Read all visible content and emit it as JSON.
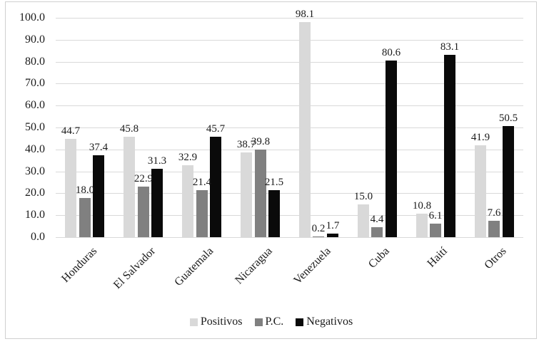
{
  "chart_data": {
    "type": "bar",
    "title": "",
    "xlabel": "",
    "ylabel": "",
    "categories": [
      "Honduras",
      "El Salvador",
      "Guatemala",
      "Nicaragua",
      "Venezuela",
      "Cuba",
      "Haití",
      "Otros"
    ],
    "series": [
      {
        "name": "Positivos",
        "color": "#d9d9d9",
        "values": [
          44.7,
          45.8,
          32.9,
          38.7,
          98.1,
          15.0,
          10.8,
          41.9
        ]
      },
      {
        "name": "P.C.",
        "color": "#808080",
        "values": [
          18.0,
          22.9,
          21.4,
          39.8,
          0.2,
          4.4,
          6.1,
          7.6
        ]
      },
      {
        "name": "Negativos",
        "color": "#0a0a0a",
        "values": [
          37.4,
          31.3,
          45.7,
          21.5,
          1.7,
          80.6,
          83.1,
          50.5
        ]
      }
    ],
    "ylim": [
      0,
      100
    ],
    "ytick_step": 10,
    "ytick_labels": [
      "0.0",
      "10.0",
      "20.0",
      "30.0",
      "40.0",
      "50.0",
      "60.0",
      "70.0",
      "80.0",
      "90.0",
      "100.0"
    ],
    "grid": "horizontal",
    "value_labels": true,
    "legend_position": "bottom"
  },
  "colors": {
    "gridline": "#d9d9d9",
    "frame_border": "#d0d0d0",
    "text": "#1a1a1a",
    "background": "#ffffff"
  }
}
